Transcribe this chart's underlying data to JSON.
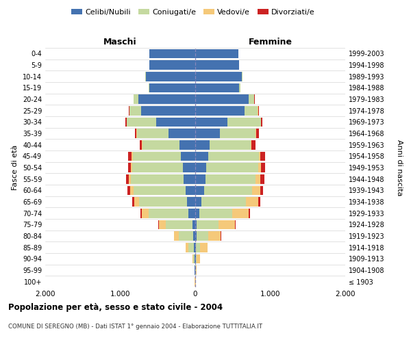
{
  "age_groups": [
    "100+",
    "95-99",
    "90-94",
    "85-89",
    "80-84",
    "75-79",
    "70-74",
    "65-69",
    "60-64",
    "55-59",
    "50-54",
    "45-49",
    "40-44",
    "35-39",
    "30-34",
    "25-29",
    "20-24",
    "15-19",
    "10-14",
    "5-9",
    "0-4"
  ],
  "birth_years": [
    "≤ 1903",
    "1904-1908",
    "1909-1913",
    "1914-1918",
    "1919-1923",
    "1924-1928",
    "1929-1933",
    "1934-1938",
    "1939-1943",
    "1944-1948",
    "1949-1953",
    "1954-1958",
    "1959-1963",
    "1964-1968",
    "1969-1973",
    "1974-1978",
    "1979-1983",
    "1984-1988",
    "1989-1993",
    "1994-1998",
    "1999-2003"
  ],
  "males": {
    "celibi": [
      2,
      5,
      8,
      15,
      25,
      35,
      90,
      110,
      130,
      155,
      160,
      195,
      210,
      360,
      520,
      720,
      760,
      610,
      660,
      610,
      615
    ],
    "coniugati": [
      2,
      5,
      20,
      75,
      190,
      360,
      530,
      640,
      690,
      700,
      680,
      640,
      490,
      420,
      390,
      155,
      60,
      15,
      5,
      0,
      0
    ],
    "vedovi": [
      1,
      3,
      12,
      35,
      65,
      90,
      90,
      65,
      50,
      30,
      20,
      15,
      10,
      5,
      5,
      3,
      2,
      0,
      0,
      0,
      0
    ],
    "divorziati": [
      0,
      0,
      1,
      2,
      4,
      7,
      22,
      28,
      32,
      38,
      38,
      42,
      32,
      22,
      12,
      6,
      3,
      0,
      0,
      0,
      0
    ]
  },
  "females": {
    "nubili": [
      2,
      3,
      5,
      10,
      18,
      22,
      55,
      85,
      115,
      135,
      145,
      175,
      195,
      330,
      430,
      660,
      710,
      580,
      625,
      585,
      575
    ],
    "coniugate": [
      2,
      5,
      15,
      55,
      155,
      290,
      440,
      590,
      640,
      670,
      695,
      675,
      545,
      475,
      445,
      175,
      75,
      22,
      8,
      2,
      0
    ],
    "vedove": [
      3,
      8,
      40,
      95,
      165,
      220,
      215,
      165,
      110,
      65,
      38,
      22,
      12,
      8,
      5,
      3,
      2,
      1,
      0,
      0,
      0
    ],
    "divorziate": [
      0,
      0,
      1,
      3,
      5,
      10,
      22,
      32,
      42,
      48,
      52,
      58,
      52,
      38,
      18,
      10,
      4,
      1,
      0,
      0,
      0
    ]
  },
  "colors": {
    "celibi": "#4472b0",
    "coniugati": "#c5d9a0",
    "vedovi": "#f5c97a",
    "divorziati": "#cc2222"
  },
  "title": "Popolazione per età, sesso e stato civile - 2004",
  "subtitle": "COMUNE DI SEREGNO (MB) - Dati ISTAT 1° gennaio 2004 - Elaborazione TUTTITALIA.IT",
  "ylabel_left": "Fasce di età",
  "ylabel_right": "Anni di nascita",
  "header_left": "Maschi",
  "header_right": "Femmine",
  "legend_labels": [
    "Celibi/Nubili",
    "Coniugati/e",
    "Vedovi/e",
    "Divorziati/e"
  ],
  "xlim": 2000,
  "xtick_labels": [
    "2.000",
    "1.000",
    "0",
    "1.000",
    "2.000"
  ],
  "background_color": "#ffffff",
  "grid_color": "#cccccc",
  "grid_linestyle": "--"
}
